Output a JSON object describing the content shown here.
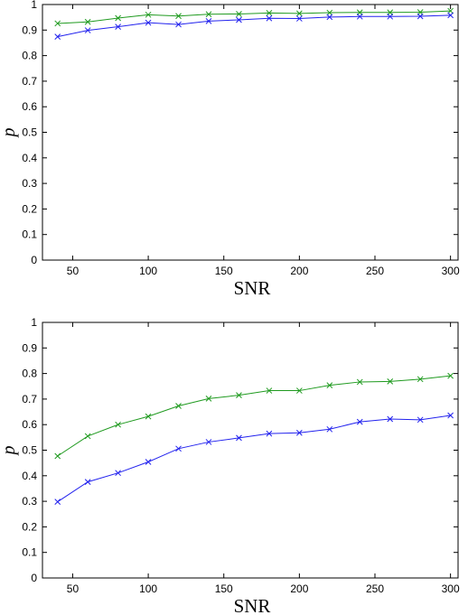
{
  "chart_data": [
    {
      "type": "line",
      "xlabel": "SNR",
      "ylabel": "p",
      "xlim": [
        30,
        305
      ],
      "ylim": [
        0,
        1
      ],
      "xticks": [
        50,
        100,
        150,
        200,
        250,
        300
      ],
      "yticks": [
        0,
        0.1,
        0.2,
        0.3,
        0.4,
        0.5,
        0.6,
        0.7,
        0.8,
        0.9,
        1
      ],
      "x": [
        40,
        60,
        80,
        100,
        120,
        140,
        160,
        180,
        200,
        220,
        240,
        260,
        280,
        300
      ],
      "grid": false,
      "series": [
        {
          "color": "#1f9a1f",
          "marker": "x",
          "values": [
            0.926,
            0.932,
            0.947,
            0.96,
            0.955,
            0.962,
            0.963,
            0.967,
            0.965,
            0.968,
            0.969,
            0.969,
            0.97,
            0.975
          ]
        },
        {
          "color": "#2222ee",
          "marker": "x",
          "values": [
            0.874,
            0.899,
            0.913,
            0.929,
            0.922,
            0.935,
            0.94,
            0.946,
            0.945,
            0.951,
            0.953,
            0.953,
            0.954,
            0.958
          ]
        }
      ]
    },
    {
      "type": "line",
      "xlabel": "SNR",
      "ylabel": "p",
      "xlim": [
        30,
        305
      ],
      "ylim": [
        0,
        1
      ],
      "xticks": [
        50,
        100,
        150,
        200,
        250,
        300
      ],
      "yticks": [
        0,
        0.1,
        0.2,
        0.3,
        0.4,
        0.5,
        0.6,
        0.7,
        0.8,
        0.9,
        1
      ],
      "x": [
        40,
        60,
        80,
        100,
        120,
        140,
        160,
        180,
        200,
        220,
        240,
        260,
        280,
        300
      ],
      "grid": false,
      "series": [
        {
          "color": "#1f9a1f",
          "marker": "x",
          "values": [
            0.477,
            0.555,
            0.6,
            0.632,
            0.673,
            0.702,
            0.715,
            0.733,
            0.733,
            0.754,
            0.767,
            0.769,
            0.778,
            0.791
          ]
        },
        {
          "color": "#2222ee",
          "marker": "x",
          "values": [
            0.298,
            0.376,
            0.411,
            0.454,
            0.506,
            0.532,
            0.548,
            0.565,
            0.568,
            0.582,
            0.611,
            0.622,
            0.619,
            0.636
          ]
        }
      ]
    }
  ]
}
